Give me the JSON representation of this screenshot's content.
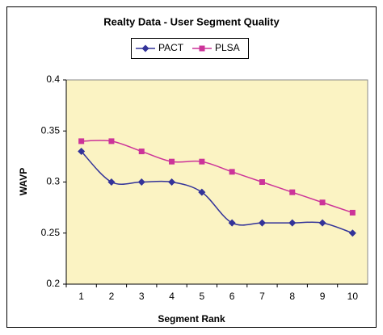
{
  "chart_data": {
    "type": "line",
    "title": "Realty Data - User Segment Quality",
    "x_label": "Segment Rank",
    "y_label": "WAVP",
    "categories": [
      "1",
      "2",
      "3",
      "4",
      "5",
      "6",
      "7",
      "8",
      "9",
      "10"
    ],
    "series": [
      {
        "name": "PACT",
        "color": "#333399",
        "marker": "diamond",
        "values": [
          0.33,
          0.3,
          0.3,
          0.3,
          0.29,
          0.26,
          0.26,
          0.26,
          0.26,
          0.25
        ]
      },
      {
        "name": "PLSA",
        "color": "#cc3399",
        "marker": "square",
        "values": [
          0.34,
          0.34,
          0.33,
          0.32,
          0.32,
          0.31,
          0.3,
          0.29,
          0.28,
          0.27
        ]
      }
    ],
    "ylim": [
      0.2,
      0.4
    ],
    "yticks": [
      0.2,
      0.25,
      0.3,
      0.35,
      0.4
    ],
    "grid": false,
    "legend": "top"
  }
}
